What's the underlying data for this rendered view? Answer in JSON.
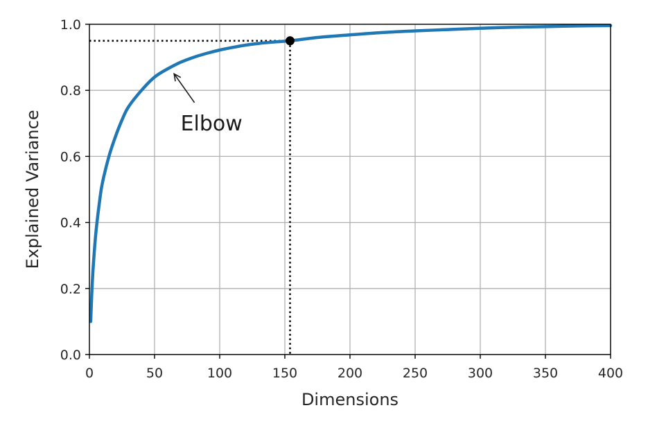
{
  "chart_data": {
    "type": "line",
    "title": "",
    "xlabel": "Dimensions",
    "ylabel": "Explained Variance",
    "xlim": [
      0,
      400
    ],
    "ylim": [
      0.0,
      1.0
    ],
    "grid": true,
    "legend": "none",
    "xticks": [
      0,
      50,
      100,
      150,
      200,
      250,
      300,
      350,
      400
    ],
    "xtick_labels": [
      "0",
      "50",
      "100",
      "150",
      "200",
      "250",
      "300",
      "350",
      "400"
    ],
    "yticks": [
      0.0,
      0.2,
      0.4,
      0.6,
      0.8,
      1.0
    ],
    "ytick_labels": [
      "0.0",
      "0.2",
      "0.4",
      "0.6",
      "0.8",
      "1.0"
    ],
    "series": [
      {
        "color": "#1f77b4",
        "x": [
          1,
          2,
          3,
          5,
          8,
          10,
          15,
          20,
          25,
          30,
          40,
          50,
          60,
          70,
          80,
          90,
          100,
          110,
          120,
          130,
          140,
          154,
          175,
          200,
          225,
          250,
          275,
          300,
          325,
          350,
          375,
          400
        ],
        "y": [
          0.1,
          0.2,
          0.27,
          0.37,
          0.47,
          0.52,
          0.6,
          0.66,
          0.71,
          0.75,
          0.8,
          0.84,
          0.865,
          0.885,
          0.9,
          0.912,
          0.922,
          0.93,
          0.937,
          0.942,
          0.946,
          0.95,
          0.96,
          0.968,
          0.975,
          0.98,
          0.984,
          0.988,
          0.991,
          0.993,
          0.995,
          0.996
        ]
      }
    ],
    "highlight_point": {
      "x": 154,
      "y": 0.95,
      "color": "#000000"
    },
    "reference_lines": {
      "style": "dotted",
      "color": "#000000",
      "x": 154,
      "y": 0.95
    },
    "annotation": {
      "text": "Elbow",
      "arrow_to": {
        "x": 65,
        "y": 0.85
      },
      "text_at": {
        "x": 70,
        "y": 0.7
      }
    }
  }
}
